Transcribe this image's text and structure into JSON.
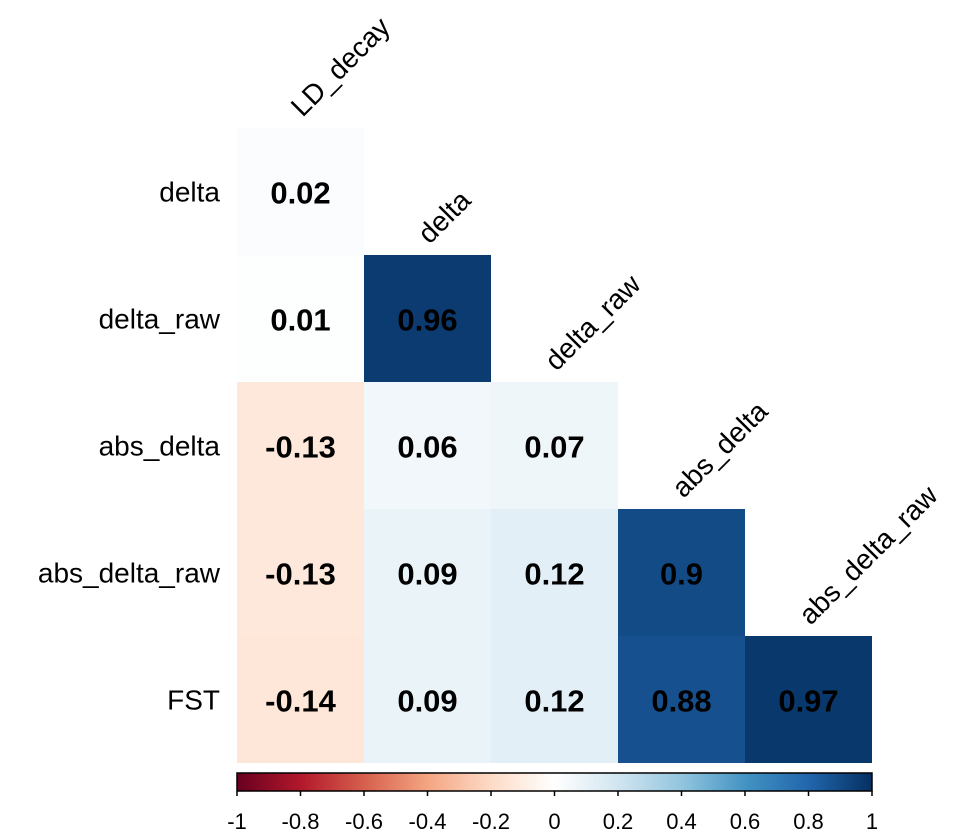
{
  "chart_data": {
    "type": "heatmap",
    "title": "",
    "layout": "lower-triangle correlation matrix (corrplot)",
    "col_labels": [
      "LD_decay",
      "delta",
      "delta_raw",
      "abs_delta",
      "abs_delta_raw"
    ],
    "row_labels": [
      "delta",
      "delta_raw",
      "abs_delta",
      "abs_delta_raw",
      "FST"
    ],
    "values": [
      [
        0.02
      ],
      [
        0.01,
        0.96
      ],
      [
        -0.13,
        0.06,
        0.07
      ],
      [
        -0.13,
        0.09,
        0.12,
        0.9
      ],
      [
        -0.14,
        0.09,
        0.12,
        0.88,
        0.97
      ]
    ],
    "value_labels": [
      [
        "0.02"
      ],
      [
        "0.01",
        "0.96"
      ],
      [
        "-0.13",
        "0.06",
        "0.07"
      ],
      [
        "-0.13",
        "0.09",
        "0.12",
        "0.9"
      ],
      [
        "-0.14",
        "0.09",
        "0.12",
        "0.88",
        "0.97"
      ]
    ],
    "colorbar": {
      "range": [
        -1,
        1
      ],
      "ticks": [
        "-1",
        "-0.8",
        "-0.6",
        "-0.4",
        "-0.2",
        "0",
        "0.2",
        "0.4",
        "0.6",
        "0.8",
        "1"
      ],
      "placement": "bottom",
      "colors": [
        "#67001f",
        "#b2182b",
        "#d6604d",
        "#f4a582",
        "#fddbc7",
        "#ffffff",
        "#d1e5f0",
        "#92c5de",
        "#4393c3",
        "#2166ac",
        "#053061"
      ]
    }
  }
}
